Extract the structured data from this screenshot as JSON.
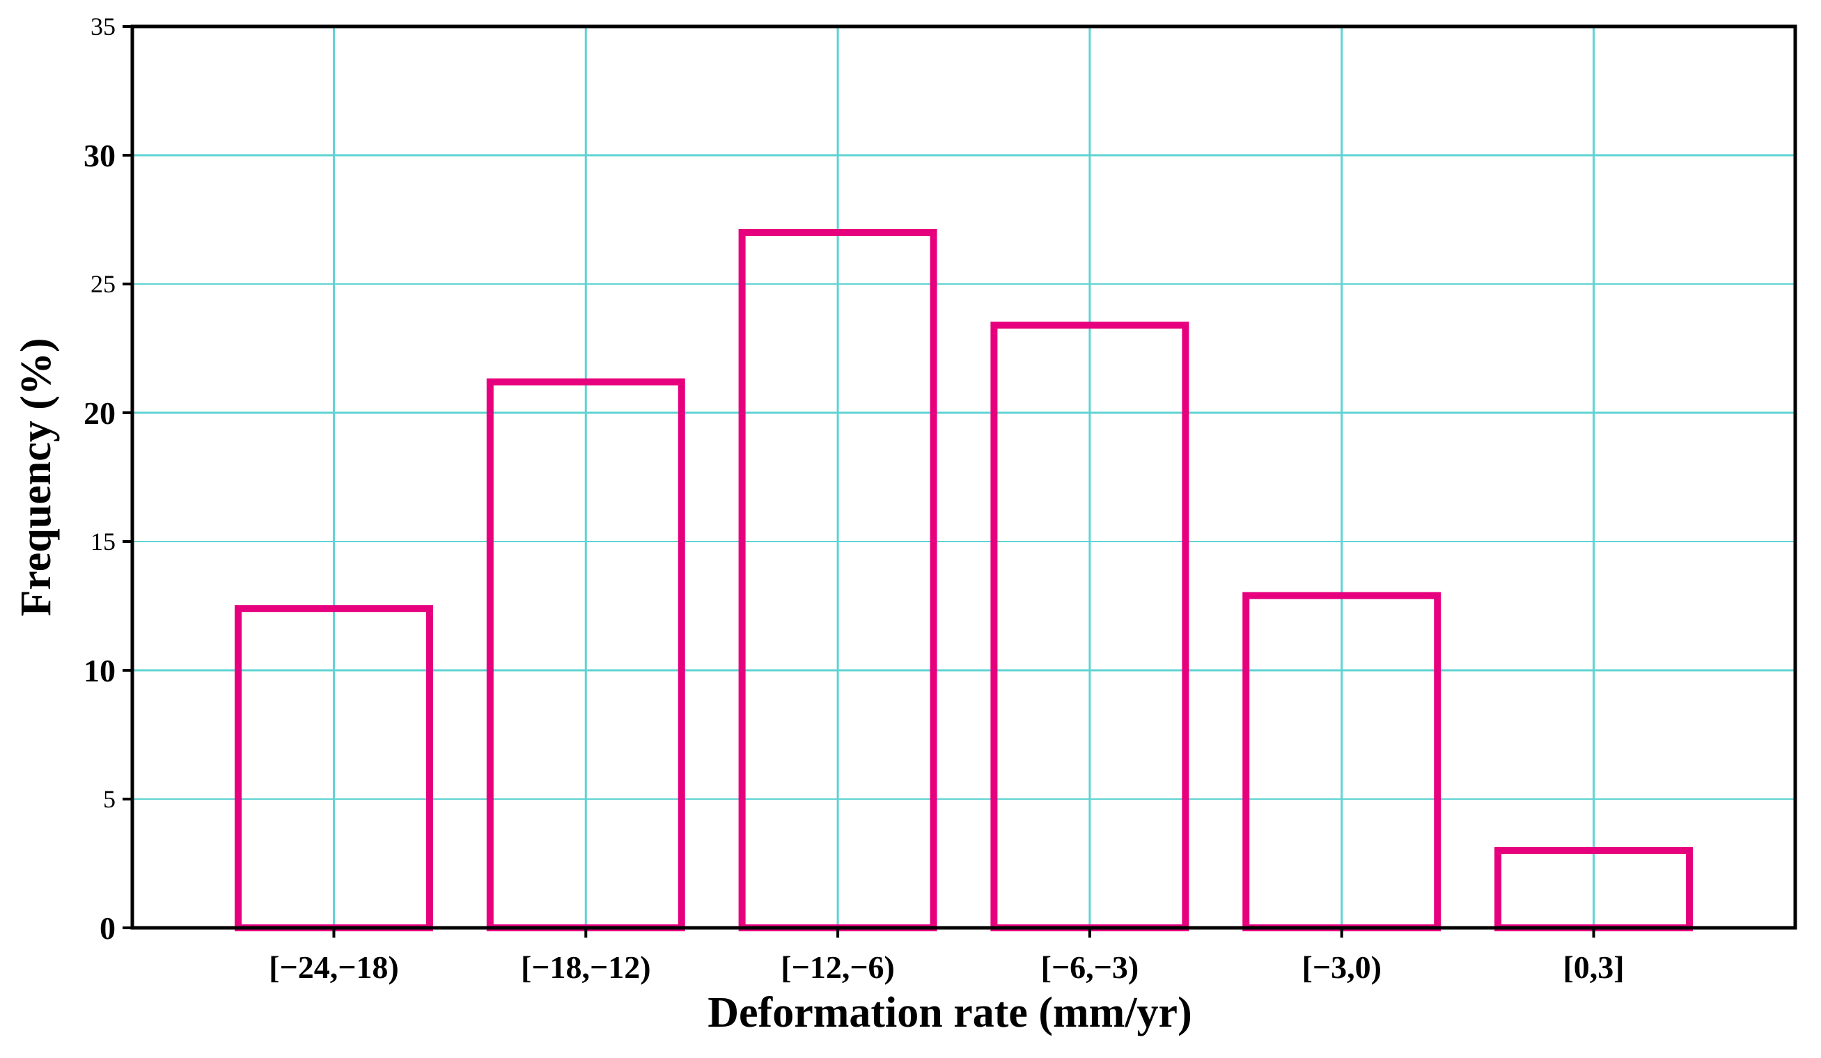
{
  "chart_data": {
    "type": "bar",
    "categories": [
      "[−24,−18)",
      "[−18,−12)",
      "[−12,−6)",
      "[−6,−3)",
      "[−3,0)",
      "[0,3]"
    ],
    "values": [
      12.4,
      21.2,
      27.0,
      23.4,
      12.9,
      3.0
    ],
    "title": "",
    "xlabel": "Deformation rate (mm/yr)",
    "ylabel": "Frequency (%)",
    "ylim": [
      0,
      35
    ],
    "yticks": [
      "0",
      "5",
      "10",
      "15",
      "20",
      "25",
      "30",
      "35"
    ],
    "grid": true,
    "colors": {
      "bar_edge": "#e6007e",
      "bar_fill": "#ffffff",
      "grid": "#5fd3d3",
      "axis": "#000000"
    }
  }
}
